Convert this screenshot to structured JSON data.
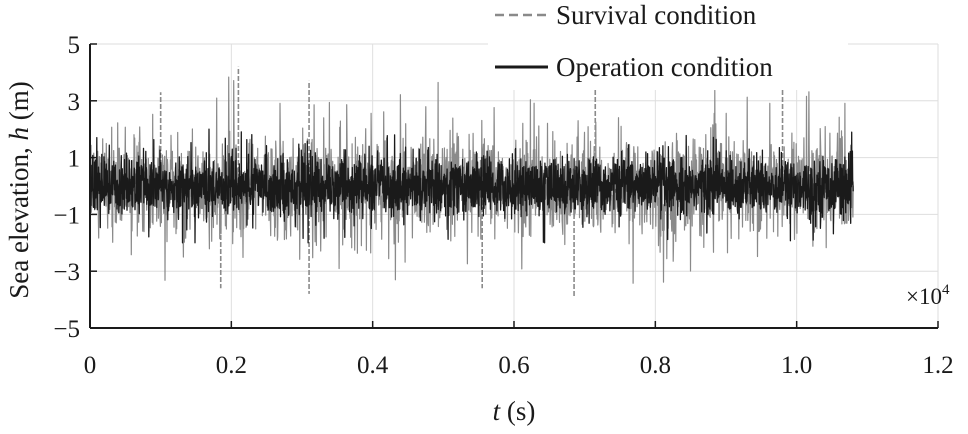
{
  "chart_data": {
    "type": "line",
    "ylabel": {
      "prefix": "Sea elevation, ",
      "var": "h",
      "unit": " (m)"
    },
    "xlabel": {
      "var": "t",
      "unit": " (s)"
    },
    "x_multiplier": {
      "base": "×10",
      "exp": "4"
    },
    "xlim": [
      0,
      1.2
    ],
    "ylim": [
      -5,
      5
    ],
    "x_ticks": [
      0,
      0.2,
      0.4,
      0.6,
      0.8,
      1.0,
      1.2
    ],
    "x_tick_labels": [
      "0",
      "0.2",
      "0.4",
      "0.6",
      "0.8",
      "1.0",
      "1.2"
    ],
    "y_ticks": [
      5,
      3,
      1,
      -1,
      -3,
      -5
    ],
    "y_tick_labels": [
      "5",
      "3",
      "1",
      "−1",
      "−3",
      "−5"
    ],
    "grid": true,
    "legend_position": "top-right",
    "series": [
      {
        "name": "Survival condition",
        "color": "#8a8a8a",
        "style": "dashed",
        "x_range": [
          0,
          1.08
        ],
        "typical_amplitude": 1.6,
        "max": 4.2,
        "min": -3.9
      },
      {
        "name": "Operation condition",
        "color": "#1a1a1a",
        "style": "solid",
        "x_range": [
          0,
          1.08
        ],
        "typical_amplitude": 0.9,
        "max": 2.0,
        "min": -2.0
      }
    ]
  }
}
